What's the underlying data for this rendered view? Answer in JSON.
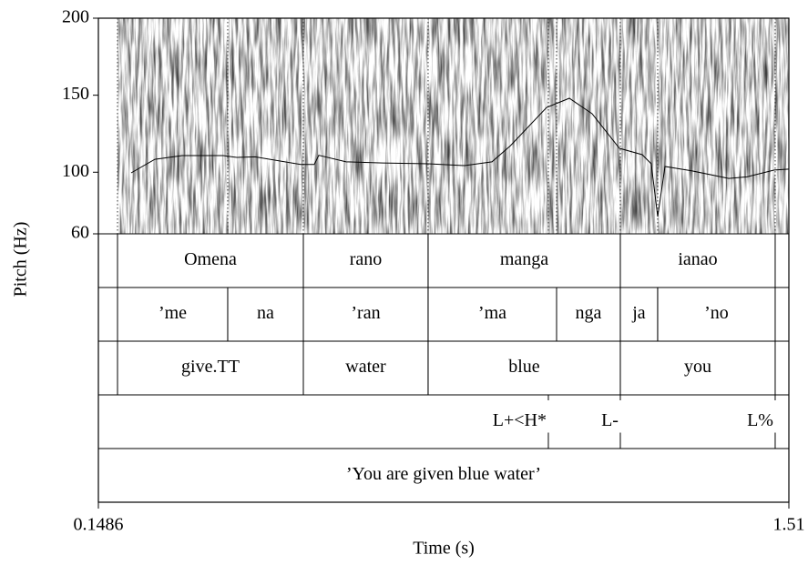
{
  "chart_data": {
    "type": "line",
    "y_label": "Pitch (Hz)",
    "x_label": "Time (s)",
    "xlim": [
      0.1486,
      1.51
    ],
    "xticks": [
      0.1486,
      1.51
    ],
    "ylim": [
      60,
      200
    ],
    "yticks": [
      60,
      100,
      150,
      200
    ],
    "series": [
      {
        "color": "#000000",
        "x": [
          0.2133,
          0.26,
          0.3138,
          0.3946,
          0.4216,
          0.4575,
          0.5473,
          0.5742,
          0.5832,
          0.6371,
          0.7089,
          0.7987,
          0.8706,
          0.9245,
          0.9604,
          1.0322,
          1.0771,
          1.122,
          1.1759,
          1.2208,
          1.2387,
          1.2513,
          1.2657,
          1.3196,
          1.3914,
          1.4273,
          1.4812,
          1.51
        ],
        "values": [
          99.6,
          108.4,
          110.8,
          110.8,
          109.6,
          110,
          105,
          105,
          111,
          106.7,
          106,
          105.5,
          104.3,
          106.7,
          117,
          142,
          148,
          138,
          115.5,
          111.4,
          105.5,
          71.2,
          103.7,
          100.8,
          96,
          97,
          101.4,
          102
        ]
      }
    ],
    "tiers": [
      {
        "intervals": [
          {
            "label": "Omena",
            "start": 0.1863,
            "end": 0.5527
          },
          {
            "label": "rano",
            "start": 0.5527,
            "end": 0.7987
          },
          {
            "label": "manga",
            "start": 0.7987,
            "end": 1.1777
          },
          {
            "label": "ianao",
            "start": 1.1777,
            "end": 1.483
          }
        ]
      },
      {
        "intervals": [
          {
            "label": "’me",
            "start": 0.1863,
            "end": 0.4036
          },
          {
            "label": "na",
            "start": 0.4036,
            "end": 0.5527
          },
          {
            "label": "’ran",
            "start": 0.5527,
            "end": 0.7987
          },
          {
            "label": "’ma",
            "start": 0.7987,
            "end": 1.052
          },
          {
            "label": "nga",
            "start": 1.052,
            "end": 1.1777
          },
          {
            "label": "ja",
            "start": 1.1777,
            "end": 1.2513
          },
          {
            "label": "’no",
            "start": 1.2513,
            "end": 1.483
          }
        ]
      },
      {
        "intervals": [
          {
            "label": "give.TT",
            "start": 0.1863,
            "end": 0.5527
          },
          {
            "label": "water",
            "start": 0.5527,
            "end": 0.7987
          },
          {
            "label": "blue",
            "start": 0.7987,
            "end": 1.1777
          },
          {
            "label": "you",
            "start": 1.1777,
            "end": 1.483
          }
        ]
      },
      {
        "points": [
          {
            "label": "L+<H*",
            "time": 1.0358
          },
          {
            "label": "L-",
            "time": 1.1777
          },
          {
            "label": "L%",
            "time": 1.483
          }
        ]
      },
      {
        "intervals": [
          {
            "label": "’You are given blue water’",
            "start": 0.1486,
            "end": 1.51
          }
        ]
      }
    ]
  }
}
